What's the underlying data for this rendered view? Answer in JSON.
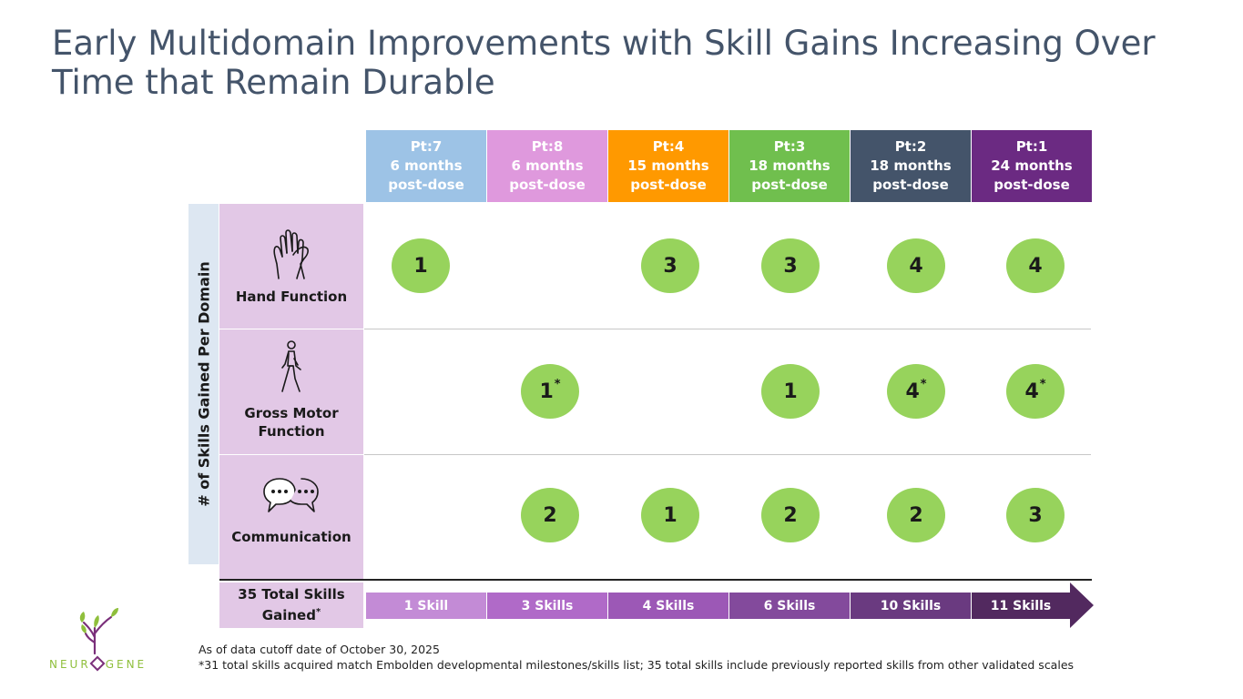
{
  "title": "Early Multidomain Improvements with Skill Gains Increasing Over Time that Remain Durable",
  "columns": [
    {
      "pt": "Pt:7",
      "months": "6 months",
      "post": "post-dose",
      "color": "#9dc3e6"
    },
    {
      "pt": "Pt:8",
      "months": "6 months",
      "post": "post-dose",
      "color": "#df99dd"
    },
    {
      "pt": "Pt:4",
      "months": "15 months",
      "post": "post-dose",
      "color": "#ff9900"
    },
    {
      "pt": "Pt:3",
      "months": "18 months",
      "post": "post-dose",
      "color": "#70bf4e"
    },
    {
      "pt": "Pt:2",
      "months": "18 months",
      "post": "post-dose",
      "color": "#44546a"
    },
    {
      "pt": "Pt:1",
      "months": "24 months",
      "post": "post-dose",
      "color": "#6b2a82"
    }
  ],
  "y_axis_label": "# of Skills Gained Per Domain",
  "rows": [
    {
      "label": "Hand Function",
      "icon": "hand-icon",
      "values": [
        "1",
        "",
        "3",
        "3",
        "4",
        "4"
      ],
      "asterisks": [
        false,
        false,
        false,
        false,
        false,
        false
      ]
    },
    {
      "label": "Gross Motor Function",
      "icon": "walking-person-icon",
      "values": [
        "",
        "1",
        "",
        "1",
        "4",
        "4"
      ],
      "asterisks": [
        false,
        true,
        false,
        false,
        true,
        true
      ]
    },
    {
      "label": "Communication",
      "icon": "speech-bubbles-icon",
      "values": [
        "",
        "2",
        "1",
        "2",
        "2",
        "3"
      ],
      "asterisks": [
        false,
        false,
        false,
        false,
        false,
        false
      ]
    }
  ],
  "asterisk": "*",
  "total": {
    "label": "35 Total Skills Gained",
    "asterisk": "*"
  },
  "totals_arrow": [
    {
      "label": "1 Skill",
      "color": "#c38bd6"
    },
    {
      "label": "3 Skills",
      "color": "#b06ac8"
    },
    {
      "label": "4 Skills",
      "color": "#9c58b6"
    },
    {
      "label": "6 Skills",
      "color": "#834a9c"
    },
    {
      "label": "10 Skills",
      "color": "#6a3a80"
    },
    {
      "label": "11 Skills",
      "color": "#52295f"
    }
  ],
  "logo": {
    "text_left": "NEUR",
    "text_right": "GENE"
  },
  "footnotes": {
    "cutoff": "As of data cutoff date of October 30, 2025",
    "note": "*31 total skills acquired match Embolden developmental milestones/skills list; 35 total skills include previously reported skills from other validated scales"
  }
}
